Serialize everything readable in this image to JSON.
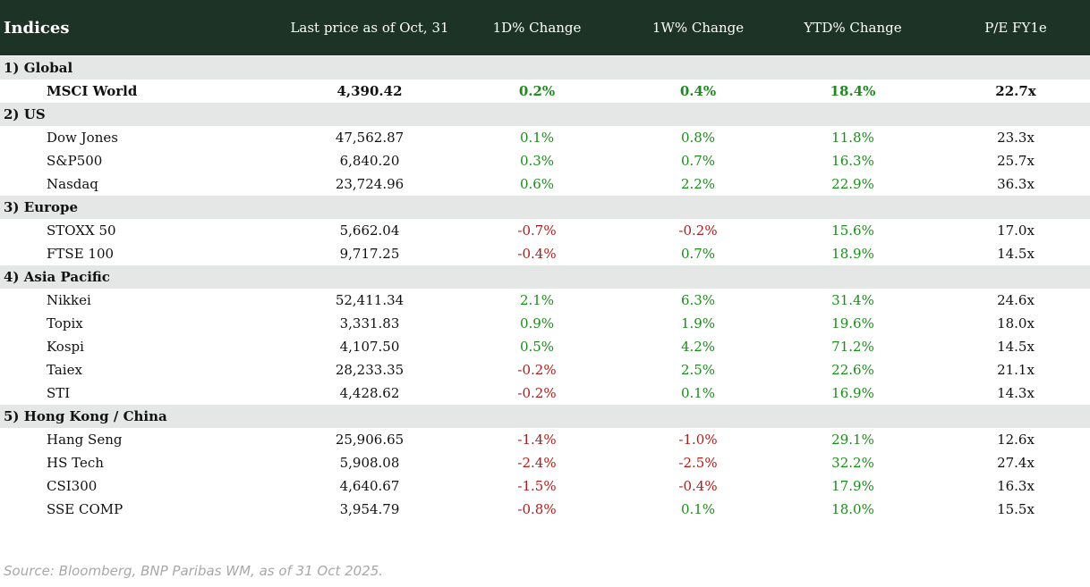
{
  "header": {
    "columns": [
      "Indices",
      "Last price as of Oct, 31",
      "1D% Change",
      "1W% Change",
      "YTD% Change",
      "P/E FY1e"
    ]
  },
  "sections": [
    {
      "title": "1) Global",
      "rows": [
        [
          "MSCI World",
          "4,390.42",
          "0.2%",
          "0.4%",
          "18.4%",
          "22.7x"
        ]
      ]
    },
    {
      "title": "2) US",
      "rows": [
        [
          "Dow Jones",
          "47,562.87",
          "0.1%",
          "0.8%",
          "11.8%",
          "23.3x"
        ],
        [
          "S&P500",
          "6,840.20",
          "0.3%",
          "0.7%",
          "16.3%",
          "25.7x"
        ],
        [
          "Nasdaq",
          "23,724.96",
          "0.6%",
          "2.2%",
          "22.9%",
          "36.3x"
        ]
      ]
    },
    {
      "title": "3) Europe",
      "rows": [
        [
          "STOXX 50",
          "5,662.04",
          "-0.7%",
          "-0.2%",
          "15.6%",
          "17.0x"
        ],
        [
          "FTSE 100",
          "9,717.25",
          "-0.4%",
          "0.7%",
          "18.9%",
          "14.5x"
        ]
      ]
    },
    {
      "title": "4) Asia Pacific",
      "rows": [
        [
          "Nikkei",
          "52,411.34",
          "2.1%",
          "6.3%",
          "31.4%",
          "24.6x"
        ],
        [
          "Topix",
          "3,331.83",
          "0.9%",
          "1.9%",
          "19.6%",
          "18.0x"
        ],
        [
          "Kospi",
          "4,107.50",
          "0.5%",
          "4.2%",
          "71.2%",
          "14.5x"
        ],
        [
          "Taiex",
          "28,233.35",
          "-0.2%",
          "2.5%",
          "22.6%",
          "21.1x"
        ],
        [
          "STI",
          "4,428.62",
          "-0.2%",
          "0.1%",
          "16.9%",
          "14.3x"
        ]
      ]
    },
    {
      "title": "5) Hong Kong / China",
      "rows": [
        [
          "Hang Seng",
          "25,906.65",
          "-1.4%",
          "-1.0%",
          "29.1%",
          "12.6x"
        ],
        [
          "HS Tech",
          "5,908.08",
          "-2.4%",
          "-2.5%",
          "32.2%",
          "27.4x"
        ],
        [
          "CSI300",
          "4,640.67",
          "-1.5%",
          "-0.4%",
          "17.9%",
          "16.3x"
        ],
        [
          "SSE COMP",
          "3,954.79",
          "-0.8%",
          "0.1%",
          "18.0%",
          "15.5x"
        ]
      ]
    }
  ],
  "source": "Source: Bloomberg, BNP Paribas WM, as of 31 Oct 2025."
}
